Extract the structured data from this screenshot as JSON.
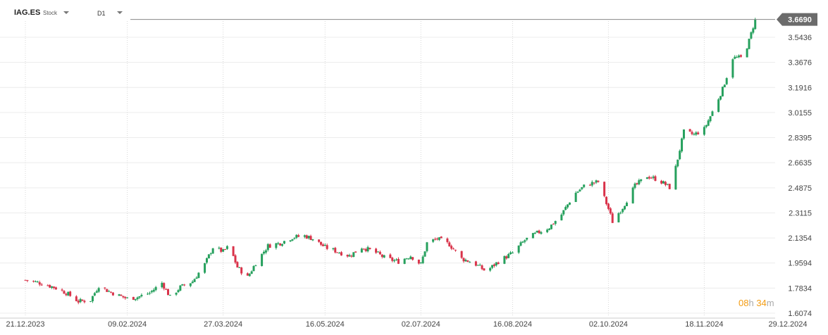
{
  "header": {
    "symbol": "IAG.ES",
    "instrument_type": "Stock",
    "timeframe": "D1"
  },
  "countdown": {
    "hours": "08",
    "hours_unit": "h",
    "minutes": "34",
    "minutes_unit": "m"
  },
  "colors": {
    "up": "#26a05d",
    "down": "#d9334a",
    "price_tag": "#6b6b6b",
    "grid": "#ececec"
  },
  "chart_data": {
    "type": "candlestick",
    "y_ticks": [
      "3.5436",
      "3.3676",
      "3.1916",
      "3.0155",
      "2.8395",
      "2.6635",
      "2.4875",
      "2.3115",
      "2.1354",
      "1.9594",
      "1.7834",
      "1.6074"
    ],
    "ylim": [
      1.6074,
      3.669
    ],
    "x_ticks": [
      "21.12.2023",
      "09.02.2024",
      "27.03.2024",
      "16.05.2024",
      "02.07.2024",
      "16.08.2024",
      "02.10.2024",
      "18.11.2024",
      "29.12.2024"
    ],
    "last_price": "3.6690",
    "grid": true,
    "close_path": [
      [
        "21.12.2023",
        1.84
      ],
      [
        "28.12.2023",
        1.82
      ],
      [
        "04.01.2024",
        1.79
      ],
      [
        "10.01.2024",
        1.75
      ],
      [
        "16.01.2024",
        1.69
      ],
      [
        "22.01.2024",
        1.7
      ],
      [
        "26.01.2024",
        1.8
      ],
      [
        "31.01.2024",
        1.76
      ],
      [
        "05.02.2024",
        1.73
      ],
      [
        "09.02.2024",
        1.71
      ],
      [
        "14.02.2024",
        1.72
      ],
      [
        "20.02.2024",
        1.75
      ],
      [
        "26.02.2024",
        1.82
      ],
      [
        "01.03.2024",
        1.72
      ],
      [
        "06.03.2024",
        1.79
      ],
      [
        "12.03.2024",
        1.83
      ],
      [
        "18.03.2024",
        1.95
      ],
      [
        "22.03.2024",
        2.07
      ],
      [
        "27.03.2024",
        2.04
      ],
      [
        "30.03.2024",
        2.08
      ],
      [
        "03.04.2024",
        1.93
      ],
      [
        "08.04.2024",
        1.86
      ],
      [
        "12.04.2024",
        1.96
      ],
      [
        "18.04.2024",
        2.08
      ],
      [
        "24.04.2024",
        2.1
      ],
      [
        "30.04.2024",
        2.14
      ],
      [
        "06.05.2024",
        2.15
      ],
      [
        "10.05.2024",
        2.13
      ],
      [
        "16.05.2024",
        2.07
      ],
      [
        "22.05.2024",
        2.04
      ],
      [
        "28.05.2024",
        2.01
      ],
      [
        "03.06.2024",
        2.07
      ],
      [
        "09.06.2024",
        2.04
      ],
      [
        "15.06.2024",
        1.99
      ],
      [
        "21.06.2024",
        1.97
      ],
      [
        "27.06.2024",
        2.01
      ],
      [
        "02.07.2024",
        1.95
      ],
      [
        "05.07.2024",
        2.1
      ],
      [
        "10.07.2024",
        2.13
      ],
      [
        "16.07.2024",
        2.09
      ],
      [
        "22.07.2024",
        1.99
      ],
      [
        "28.07.2024",
        1.96
      ],
      [
        "03.08.2024",
        1.9
      ],
      [
        "09.08.2024",
        1.97
      ],
      [
        "16.08.2024",
        2.03
      ],
      [
        "22.08.2024",
        2.12
      ],
      [
        "28.08.2024",
        2.17
      ],
      [
        "03.09.2024",
        2.21
      ],
      [
        "09.09.2024",
        2.3
      ],
      [
        "15.09.2024",
        2.44
      ],
      [
        "21.09.2024",
        2.51
      ],
      [
        "27.09.2024",
        2.53
      ],
      [
        "02.10.2024",
        2.34
      ],
      [
        "04.10.2024",
        2.25
      ],
      [
        "09.10.2024",
        2.35
      ],
      [
        "15.10.2024",
        2.5
      ],
      [
        "21.10.2024",
        2.57
      ],
      [
        "27.10.2024",
        2.54
      ],
      [
        "01.11.2024",
        2.49
      ],
      [
        "04.11.2024",
        2.63
      ],
      [
        "08.11.2024",
        2.88
      ],
      [
        "13.11.2024",
        2.86
      ],
      [
        "18.11.2024",
        2.9
      ],
      [
        "22.11.2024",
        3.02
      ],
      [
        "27.11.2024",
        3.18
      ],
      [
        "02.12.2024",
        3.4
      ],
      [
        "07.12.2024",
        3.4
      ],
      [
        "10.12.2024",
        3.52
      ],
      [
        "13.12.2024",
        3.669
      ]
    ]
  }
}
